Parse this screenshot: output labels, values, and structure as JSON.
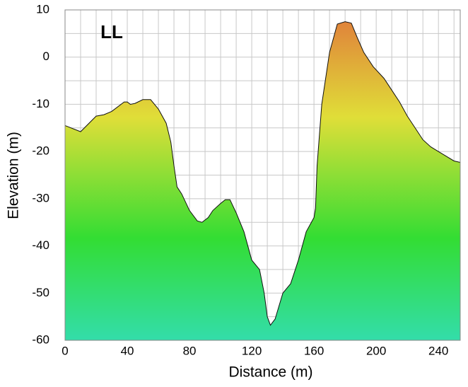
{
  "chart_data": {
    "type": "area",
    "annotation": "LL",
    "x_label": "Distance (m)",
    "y_label": "Elevation (m)",
    "x": [
      0,
      10,
      20,
      25,
      30,
      38,
      40,
      42,
      45,
      50,
      55,
      60,
      65,
      68,
      70,
      72,
      75,
      80,
      85,
      88,
      92,
      95,
      100,
      103,
      106,
      110,
      115,
      120,
      125,
      128,
      130,
      132,
      135,
      140,
      145,
      150,
      155,
      160,
      161,
      162,
      165,
      170,
      175,
      180,
      184,
      188,
      192,
      198,
      205,
      210,
      215,
      220,
      225,
      230,
      235,
      240,
      245,
      250,
      254
    ],
    "y": [
      -14.5,
      -15.8,
      -12.5,
      -12.2,
      -11.5,
      -9.5,
      -9.5,
      -10,
      -9.8,
      -9,
      -9,
      -11,
      -14,
      -18,
      -23,
      -27.5,
      -29,
      -32.5,
      -34.7,
      -35,
      -34,
      -32.5,
      -31,
      -30.2,
      -30.2,
      -33,
      -37,
      -43,
      -45,
      -50,
      -55,
      -56.8,
      -55.5,
      -50,
      -48,
      -43,
      -37,
      -34,
      -32,
      -23,
      -10,
      1,
      7,
      7.5,
      7.2,
      4,
      1,
      -2,
      -4.5,
      -7,
      -9.5,
      -12.5,
      -15,
      -17.5,
      -19,
      -20,
      -21,
      -22,
      -22.3
    ],
    "xlim": [
      0,
      254
    ],
    "ylim": [
      -60,
      10
    ],
    "xticks": [
      0,
      40,
      80,
      120,
      160,
      200,
      240
    ],
    "yticks": [
      10,
      0,
      -10,
      -20,
      -30,
      -40,
      -50,
      -60
    ],
    "xgrid": [
      10,
      20,
      30,
      40,
      50,
      60,
      70,
      80,
      90,
      100,
      110,
      120,
      130,
      140,
      150,
      160,
      170,
      180,
      190,
      200,
      210,
      220,
      230,
      240,
      250
    ],
    "ygrid": [
      5,
      0,
      -5,
      -10,
      -15,
      -20,
      -25,
      -30,
      -35,
      -40,
      -45,
      -50,
      -55
    ],
    "grid": true
  }
}
